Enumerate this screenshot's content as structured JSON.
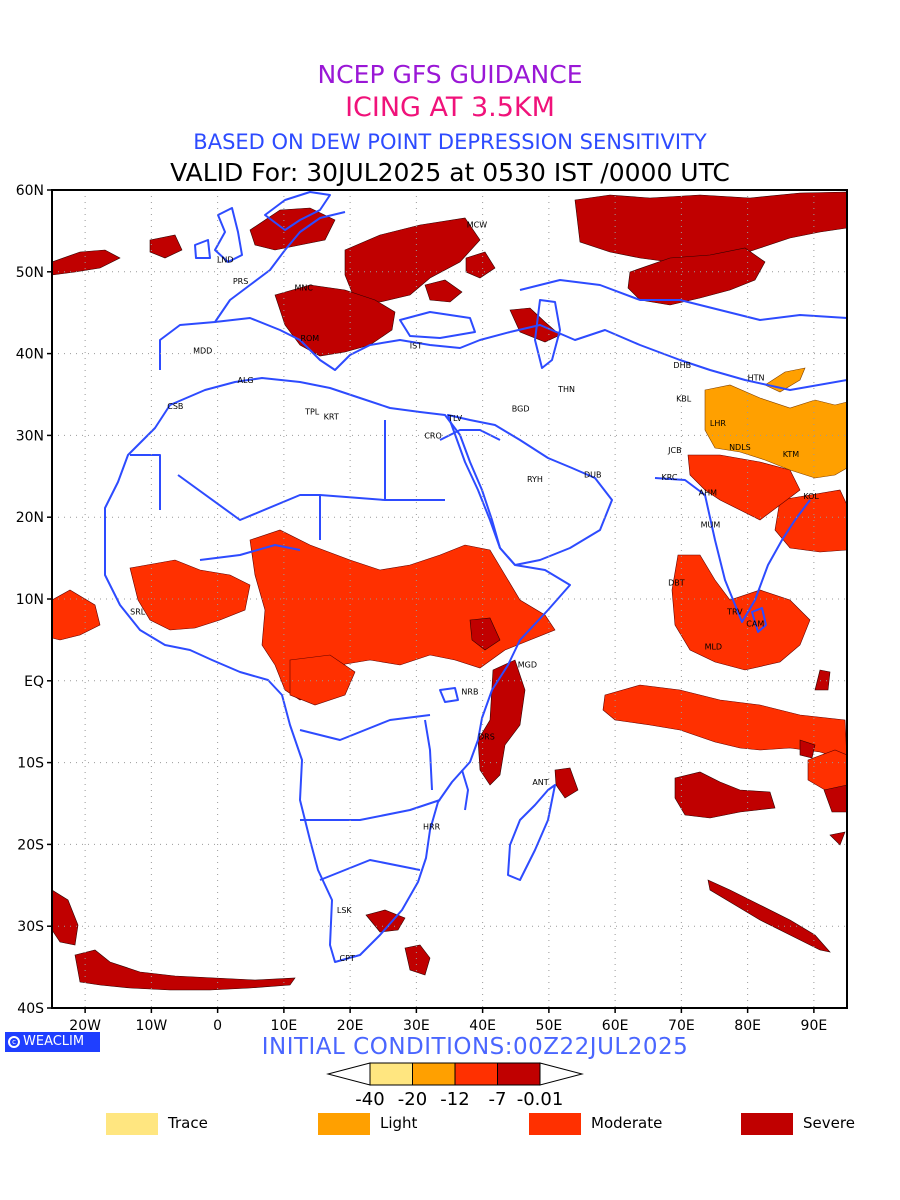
{
  "titles": {
    "line1": {
      "text": "NCEP GFS GUIDANCE",
      "color": "#9a17d6"
    },
    "line2": {
      "text": "ICING AT 3.5KM",
      "color": "#f0127a"
    },
    "line3": {
      "text": "BASED ON DEW POINT DEPRESSION SENSITIVITY",
      "color": "#2d4bff"
    },
    "line4": {
      "text": "VALID For: 30JUL2025 at 0530 IST /0000 UTC",
      "color": "#000000"
    }
  },
  "initial_conditions": "INITIAL CONDITIONS:00Z22JUL2025",
  "logo_text": "WEACLIM",
  "map": {
    "lon_range": [
      -25,
      95
    ],
    "lat_range": [
      -40,
      60
    ],
    "lat_ticks": [
      "60N",
      "50N",
      "40N",
      "30N",
      "20N",
      "10N",
      "EQ",
      "10S",
      "20S",
      "30S",
      "40S"
    ],
    "lon_ticks": [
      "20W",
      "10W",
      "0",
      "10E",
      "20E",
      "30E",
      "40E",
      "50E",
      "60E",
      "70E",
      "80E",
      "90E"
    ],
    "grid": true,
    "coastline_color": "#2d4bff"
  },
  "stations": [
    {
      "name": "MCW",
      "lon": 37.6,
      "lat": 55.8
    },
    {
      "name": "LND",
      "lon": -0.1,
      "lat": 51.5
    },
    {
      "name": "PRS",
      "lon": 2.3,
      "lat": 48.9
    },
    {
      "name": "MNC",
      "lon": 11.6,
      "lat": 48.1
    },
    {
      "name": "ROM",
      "lon": 12.5,
      "lat": 41.9
    },
    {
      "name": "MDD",
      "lon": -3.7,
      "lat": 40.4
    },
    {
      "name": "IST",
      "lon": 29.0,
      "lat": 41.0
    },
    {
      "name": "ALG",
      "lon": 3.0,
      "lat": 36.8
    },
    {
      "name": "CSB",
      "lon": -7.6,
      "lat": 33.6
    },
    {
      "name": "TPL",
      "lon": 13.2,
      "lat": 32.9
    },
    {
      "name": "KRT",
      "lon": 16.0,
      "lat": 32.3
    },
    {
      "name": "CRO",
      "lon": 31.2,
      "lat": 30.0
    },
    {
      "name": "TLV",
      "lon": 34.8,
      "lat": 32.1
    },
    {
      "name": "BGD",
      "lon": 44.4,
      "lat": 33.3
    },
    {
      "name": "THN",
      "lon": 51.4,
      "lat": 35.7
    },
    {
      "name": "RYH",
      "lon": 46.7,
      "lat": 24.7
    },
    {
      "name": "DUB",
      "lon": 55.3,
      "lat": 25.2
    },
    {
      "name": "DHB",
      "lon": 68.8,
      "lat": 38.6
    },
    {
      "name": "KBL",
      "lon": 69.2,
      "lat": 34.5
    },
    {
      "name": "HTN",
      "lon": 80.0,
      "lat": 37.1
    },
    {
      "name": "LHR",
      "lon": 74.3,
      "lat": 31.5
    },
    {
      "name": "NDLS",
      "lon": 77.2,
      "lat": 28.6
    },
    {
      "name": "JCB",
      "lon": 68.0,
      "lat": 28.2
    },
    {
      "name": "KTM",
      "lon": 85.3,
      "lat": 27.7
    },
    {
      "name": "KRC",
      "lon": 67.0,
      "lat": 24.9
    },
    {
      "name": "AHM",
      "lon": 72.6,
      "lat": 23.0
    },
    {
      "name": "KOL",
      "lon": 88.4,
      "lat": 22.6
    },
    {
      "name": "MUM",
      "lon": 72.9,
      "lat": 19.1
    },
    {
      "name": "DBT",
      "lon": 68.0,
      "lat": 12.0
    },
    {
      "name": "TRV",
      "lon": 76.9,
      "lat": 8.5
    },
    {
      "name": "CAM",
      "lon": 79.8,
      "lat": 7.0
    },
    {
      "name": "MLD",
      "lon": 73.5,
      "lat": 4.2
    },
    {
      "name": "SRL",
      "lon": -13.2,
      "lat": 8.5
    },
    {
      "name": "MGD",
      "lon": 45.3,
      "lat": 2.0
    },
    {
      "name": "NRB",
      "lon": 36.8,
      "lat": -1.3
    },
    {
      "name": "DRS",
      "lon": 39.3,
      "lat": -6.8
    },
    {
      "name": "ANT",
      "lon": 47.5,
      "lat": -12.4
    },
    {
      "name": "HRR",
      "lon": 31.0,
      "lat": -17.8
    },
    {
      "name": "LSK",
      "lon": 18.0,
      "lat": -28.0
    },
    {
      "name": "CPT",
      "lon": 18.4,
      "lat": -33.9
    }
  ],
  "colorbar": {
    "labels": [
      "-40",
      "-20",
      "-12",
      "-7",
      "-0.01"
    ],
    "colors": [
      "#ffe680",
      "#ffa000",
      "#ff3000",
      "#c00000"
    ]
  },
  "legend": [
    {
      "label": "Trace",
      "color": "#ffe680"
    },
    {
      "label": "Light",
      "color": "#ffa000"
    },
    {
      "label": "Moderate",
      "color": "#ff3000"
    },
    {
      "label": "Severe",
      "color": "#c00000"
    }
  ]
}
